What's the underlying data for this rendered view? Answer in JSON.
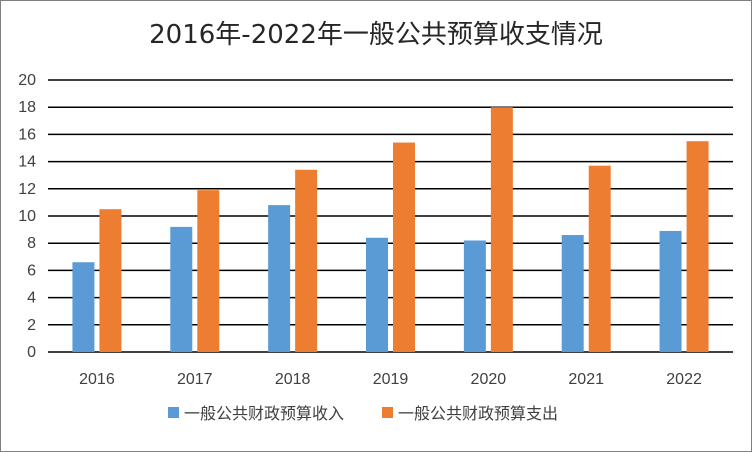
{
  "chart_data": {
    "type": "bar",
    "title": "2016年-2022年一般公共预算收支情况",
    "xlabel": "",
    "ylabel": "",
    "categories": [
      "2016",
      "2017",
      "2018",
      "2019",
      "2020",
      "2021",
      "2022"
    ],
    "series": [
      {
        "name": "一般公共财政预算收入",
        "color": "#5b9bd5",
        "values": [
          6.6,
          9.2,
          10.8,
          8.4,
          8.2,
          8.6,
          8.9
        ]
      },
      {
        "name": "一般公共财政预算支出",
        "color": "#ed7d31",
        "values": [
          10.5,
          11.9,
          13.4,
          15.4,
          18.0,
          13.7,
          15.5
        ]
      }
    ],
    "ylim": [
      0,
      20
    ],
    "yticks": [
      0,
      2,
      4,
      6,
      8,
      10,
      12,
      14,
      16,
      18,
      20
    ],
    "grid": true,
    "legend_position": "bottom"
  }
}
